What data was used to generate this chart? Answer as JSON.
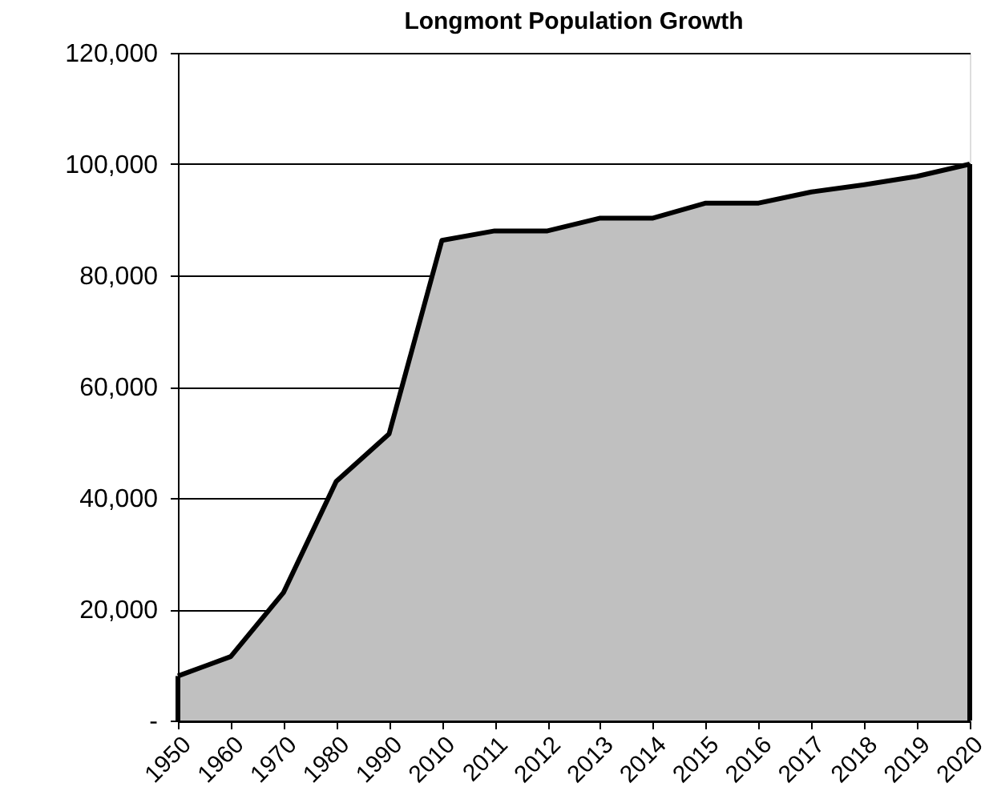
{
  "chart_data": {
    "type": "area",
    "title": "Longmont Population Growth",
    "categories": [
      "1950",
      "1960",
      "1970",
      "1980",
      "1990",
      "2010",
      "2011",
      "2012",
      "2013",
      "2014",
      "2015",
      "2016",
      "2017",
      "2018",
      "2019",
      "2020"
    ],
    "series": [
      {
        "color": "#c0c0c0",
        "values": [
          8000,
          11500,
          23000,
          43000,
          51500,
          86300,
          88000,
          88000,
          90300,
          90300,
          93000,
          93000,
          95000,
          96300,
          97800,
          100000
        ]
      }
    ],
    "ylim": [
      0,
      120000
    ],
    "yticks": [
      {
        "value": 0,
        "label": "-"
      },
      {
        "value": 20000,
        "label": "20,000"
      },
      {
        "value": 40000,
        "label": "40,000"
      },
      {
        "value": 60000,
        "label": "60,000"
      },
      {
        "value": 80000,
        "label": "80,000"
      },
      {
        "value": 100000,
        "label": "100,000"
      },
      {
        "value": 120000,
        "label": "120,000"
      }
    ],
    "grid": "y",
    "marker": "none",
    "line_style": "solid"
  }
}
